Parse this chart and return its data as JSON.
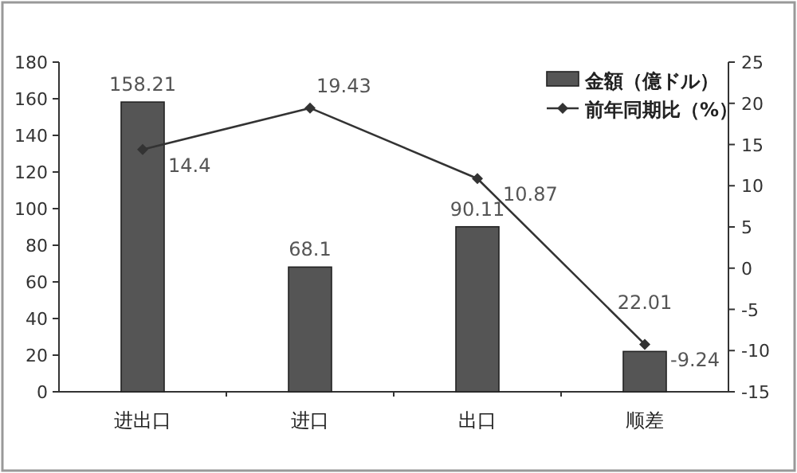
{
  "chart_data": {
    "type": "bar",
    "categories": [
      "进出口",
      "进口",
      "出口",
      "顺差"
    ],
    "series": [
      {
        "name": "金額（億ドル）",
        "color": "#555555",
        "values": [
          158.21,
          68.1,
          90.11,
          22.01
        ]
      },
      {
        "name": "前年同期比（%）",
        "type": "line",
        "axis": "y2",
        "color": "#333333",
        "marker": "diamond",
        "values": [
          14.4,
          19.43,
          10.87,
          -9.24
        ]
      }
    ],
    "ylim": [
      0,
      180
    ],
    "yticks": [
      0,
      20,
      40,
      60,
      80,
      100,
      120,
      140,
      160,
      180
    ],
    "y2lim": [
      -15,
      25
    ],
    "y2ticks": [
      -15,
      -10,
      -5,
      0,
      5,
      10,
      15,
      20,
      25
    ],
    "data_labels": true,
    "legend": "top right",
    "grid": false
  }
}
